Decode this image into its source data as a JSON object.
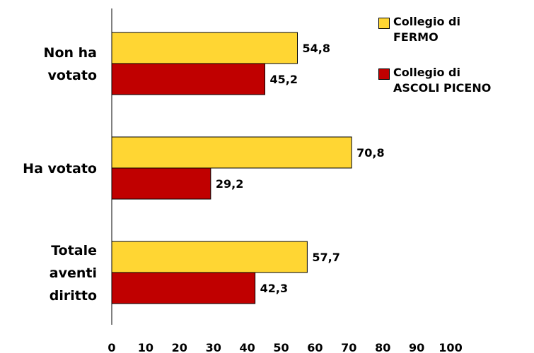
{
  "chart_data": {
    "type": "bar",
    "orientation": "horizontal",
    "categories": [
      "Non ha votato",
      "Ha votato",
      "Totale aventi diritto"
    ],
    "category_lines": [
      [
        "Non ha",
        "votato"
      ],
      [
        "Ha votato"
      ],
      [
        "Totale",
        "aventi",
        "diritto"
      ]
    ],
    "series": [
      {
        "name": "Collegio di FERMO",
        "legend_lines": [
          "Collegio di",
          "FERMO"
        ],
        "values": [
          54.8,
          70.8,
          57.7
        ],
        "labels": [
          "54,8",
          "70,8",
          "57,7"
        ],
        "color": "#FFD633"
      },
      {
        "name": "Collegio di ASCOLI PICENO",
        "legend_lines": [
          "Collegio di",
          "ASCOLI PICENO"
        ],
        "values": [
          45.2,
          29.2,
          42.3
        ],
        "labels": [
          "45,2",
          "29,2",
          "42,3"
        ],
        "color": "#C00000"
      }
    ],
    "xlim": [
      0,
      100
    ],
    "xticks": [
      "0",
      "10",
      "20",
      "30",
      "40",
      "50",
      "60",
      "70",
      "80",
      "90",
      "100"
    ],
    "grid": false,
    "legend_position": "right",
    "title": "",
    "xlabel": "",
    "ylabel": ""
  }
}
